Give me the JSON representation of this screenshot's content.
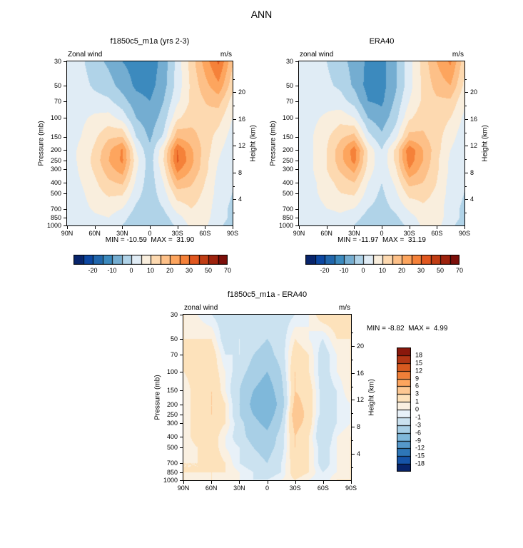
{
  "page_title": "ANN",
  "colors": {
    "background": "#ffffff",
    "frame": "#000000",
    "palette_wind": [
      "#08246b",
      "#0d47a1",
      "#2166ac",
      "#3c8abe",
      "#74add1",
      "#b0d3e8",
      "#e0ecf5",
      "#f9eedd",
      "#fdd9b0",
      "#fdc088",
      "#fda55e",
      "#f58139",
      "#e1571f",
      "#c03d14",
      "#9e230e",
      "#7c0f0a"
    ],
    "palette_diff": [
      "#08246b",
      "#1654a8",
      "#2e77b8",
      "#5598ca",
      "#7fb8da",
      "#a8cfe6",
      "#cbe2f0",
      "#e8f1f8",
      "#faf0e1",
      "#fde2bb",
      "#fdc893",
      "#fda55e",
      "#f07f38",
      "#d85a20",
      "#b23615",
      "#8a180c"
    ]
  },
  "chart_data": [
    {
      "type": "heatmap",
      "title": "f1850c5_m1a (yrs 2-3)",
      "subtitle": "Zonal wind",
      "units": "m/s",
      "stats": "MIN = -10.59  MAX =  31.90",
      "ylabel": "Pressure (mb)",
      "ylabel_right": "Height (km)",
      "x_tick_labels": [
        "90N",
        "60N",
        "30N",
        "0",
        "30S",
        "60S",
        "90S"
      ],
      "x_tick_lats": [
        90,
        60,
        30,
        0,
        -30,
        -60,
        -90
      ],
      "height_ticks_km": [
        20,
        16,
        12,
        8,
        4
      ],
      "height_minor_km": [
        22,
        18,
        14,
        10,
        6,
        2
      ],
      "lat": [
        90,
        75,
        60,
        45,
        30,
        15,
        0,
        -15,
        -30,
        -45,
        -60,
        -75,
        -90
      ],
      "pressure_levels": [
        30,
        50,
        70,
        100,
        150,
        200,
        250,
        300,
        400,
        500,
        700,
        850,
        1000
      ],
      "contour_levels": [
        -25,
        -20,
        -15,
        -10,
        -5,
        0,
        5,
        10,
        15,
        20,
        25,
        30,
        40,
        50,
        60
      ],
      "colorbar_tick_labels": [
        "-20",
        "-10",
        "0",
        "10",
        "20",
        "30",
        "50",
        "70"
      ],
      "palette": "palette_wind",
      "values": [
        [
          3,
          1,
          -3,
          -6,
          -10,
          -12,
          -13,
          -8,
          2,
          12,
          22,
          31,
          16
        ],
        [
          3,
          2,
          -1,
          -3,
          -7,
          -11,
          -12,
          -7,
          2,
          11,
          18,
          24,
          12
        ],
        [
          3,
          3,
          2,
          1,
          -3,
          -8,
          -10,
          -5,
          4,
          11,
          15,
          17,
          8
        ],
        [
          3,
          4,
          6,
          7,
          3,
          -5,
          -8,
          -3,
          9,
          13,
          14,
          12,
          5
        ],
        [
          3,
          5,
          9,
          14,
          15,
          0,
          -6,
          1,
          19,
          17,
          13,
          8,
          3
        ],
        [
          3,
          6,
          11,
          19,
          26,
          5,
          -4,
          9,
          30,
          21,
          13,
          6,
          2
        ],
        [
          3,
          6,
          12,
          20,
          26,
          7,
          -3,
          10,
          31,
          22,
          12,
          5,
          1
        ],
        [
          2,
          6,
          11,
          18,
          23,
          6,
          -3,
          8,
          27,
          20,
          12,
          4,
          1
        ],
        [
          2,
          5,
          9,
          14,
          16,
          4,
          -3,
          5,
          19,
          16,
          10,
          3,
          0
        ],
        [
          1,
          4,
          8,
          11,
          11,
          2,
          -3,
          3,
          13,
          13,
          9,
          3,
          0
        ],
        [
          1,
          3,
          6,
          7,
          5,
          -1,
          -3,
          0,
          7,
          10,
          8,
          2,
          -1
        ],
        [
          0,
          2,
          4,
          5,
          2,
          -3,
          -4,
          -2,
          3,
          8,
          7,
          2,
          -1
        ],
        [
          0,
          1,
          2,
          3,
          0,
          -4,
          -5,
          -3,
          1,
          6,
          6,
          1,
          -2
        ]
      ]
    },
    {
      "type": "heatmap",
      "title": "ERA40",
      "subtitle": "zonal wind",
      "units": "m/s",
      "stats": "MIN = -11.97  MAX =  31.19",
      "ylabel": "Pressure (mb)",
      "ylabel_right": "Height (km)",
      "x_tick_labels": [
        "90N",
        "60N",
        "30N",
        "0",
        "30S",
        "60S",
        "90S"
      ],
      "x_tick_lats": [
        90,
        60,
        30,
        0,
        -30,
        -60,
        -90
      ],
      "height_ticks_km": [
        20,
        16,
        12,
        8,
        4
      ],
      "height_minor_km": [
        22,
        18,
        14,
        10,
        6,
        2
      ],
      "lat": [
        90,
        75,
        60,
        45,
        30,
        15,
        0,
        -15,
        -30,
        -45,
        -60,
        -75,
        -90
      ],
      "pressure_levels": [
        30,
        50,
        70,
        100,
        150,
        200,
        250,
        300,
        400,
        500,
        700,
        850,
        1000
      ],
      "contour_levels": [
        -25,
        -20,
        -15,
        -10,
        -5,
        0,
        5,
        10,
        15,
        20,
        25,
        30,
        40,
        50,
        60
      ],
      "colorbar_tick_labels": [
        "-20",
        "-10",
        "0",
        "10",
        "20",
        "30",
        "50",
        "70"
      ],
      "palette": "palette_wind",
      "values": [
        [
          2,
          1,
          0,
          -3,
          -7,
          -11,
          -12,
          -6,
          3,
          12,
          20,
          26,
          12
        ],
        [
          2,
          2,
          1,
          -1,
          -6,
          -12,
          -12,
          -6,
          3,
          11,
          17,
          20,
          9
        ],
        [
          2,
          3,
          3,
          2,
          -2,
          -10,
          -11,
          -4,
          5,
          11,
          14,
          14,
          6
        ],
        [
          2,
          4,
          6,
          8,
          5,
          -5,
          -8,
          -2,
          9,
          13,
          13,
          10,
          4
        ],
        [
          2,
          5,
          9,
          14,
          17,
          2,
          -4,
          3,
          17,
          16,
          12,
          7,
          2
        ],
        [
          2,
          5,
          10,
          18,
          28,
          9,
          0,
          11,
          29,
          20,
          12,
          5,
          1
        ],
        [
          2,
          5,
          10,
          18,
          27,
          9,
          1,
          11,
          28,
          20,
          11,
          4,
          1
        ],
        [
          2,
          5,
          10,
          16,
          22,
          8,
          1,
          9,
          25,
          18,
          11,
          4,
          0
        ],
        [
          1,
          4,
          8,
          12,
          15,
          5,
          0,
          6,
          17,
          15,
          10,
          3,
          0
        ],
        [
          1,
          4,
          7,
          10,
          11,
          3,
          -1,
          4,
          12,
          12,
          9,
          3,
          0
        ],
        [
          0,
          3,
          5,
          6,
          5,
          0,
          -2,
          1,
          6,
          9,
          8,
          2,
          -1
        ],
        [
          0,
          2,
          3,
          4,
          2,
          -2,
          -3,
          -1,
          3,
          7,
          8,
          2,
          -1
        ],
        [
          0,
          1,
          2,
          2,
          0,
          -4,
          -4,
          -2,
          1,
          6,
          7,
          1,
          -2
        ]
      ]
    },
    {
      "type": "heatmap",
      "title": "f1850c5_m1a - ERA40",
      "subtitle": "zonal wind",
      "units": "m/s",
      "stats": "MIN = -8.82  MAX =  4.99",
      "ylabel": "Pressure (mb)",
      "ylabel_right": "Height (km)",
      "x_tick_labels": [
        "90N",
        "60N",
        "30N",
        "0",
        "30S",
        "60S",
        "90S"
      ],
      "x_tick_lats": [
        90,
        60,
        30,
        0,
        -30,
        -60,
        -90
      ],
      "height_ticks_km": [
        20,
        16,
        12,
        8,
        4
      ],
      "height_minor_km": [
        22,
        18,
        14,
        10,
        6,
        2
      ],
      "lat": [
        90,
        75,
        60,
        45,
        30,
        15,
        0,
        -15,
        -30,
        -45,
        -60,
        -75,
        -90
      ],
      "pressure_levels": [
        30,
        50,
        70,
        100,
        150,
        200,
        250,
        300,
        400,
        500,
        700,
        850,
        1000
      ],
      "contour_levels": [
        -18,
        -15,
        -12,
        -9,
        -6,
        -3,
        -1,
        0,
        1,
        3,
        6,
        9,
        12,
        15,
        18
      ],
      "colorbar_tick_labels": [
        "18",
        "15",
        "12",
        "9",
        "6",
        "3",
        "1",
        "0",
        "-1",
        "-3",
        "-6",
        "-9",
        "-12",
        "-15",
        "-18"
      ],
      "palette": "palette_diff",
      "values": [
        [
          1,
          0,
          -1,
          -2,
          -2,
          -2,
          -2,
          -2,
          -1,
          0,
          2,
          2,
          2
        ],
        [
          1,
          1,
          1,
          -2,
          -1,
          -2,
          -3,
          -2,
          1,
          0,
          -1,
          1,
          1
        ],
        [
          1,
          2,
          2,
          -1,
          -1,
          -3,
          -4,
          -2,
          2,
          1,
          -2,
          0,
          1
        ],
        [
          1,
          2,
          2,
          0,
          -2,
          -4,
          -6,
          -3,
          3,
          1,
          -2,
          0,
          1
        ],
        [
          0,
          2,
          3,
          0,
          -3,
          -6,
          -8,
          -4,
          3,
          2,
          -2,
          -1,
          1
        ],
        [
          0,
          2,
          3,
          1,
          -3,
          -7,
          -8.5,
          -5,
          4,
          2,
          -2,
          -1,
          0
        ],
        [
          0,
          2,
          3,
          1,
          -3,
          -6,
          -8,
          -4,
          5,
          2,
          -2,
          -1,
          0
        ],
        [
          0,
          2,
          2,
          1,
          -2,
          -5,
          -7,
          -3,
          4,
          2,
          -3,
          -1,
          0
        ],
        [
          0,
          2,
          2,
          0,
          -2,
          -4,
          -5,
          -2,
          3,
          1,
          -3,
          0,
          1
        ],
        [
          0,
          1,
          2,
          0,
          -1,
          -3,
          -4,
          -2,
          3,
          1,
          -2,
          0,
          1
        ],
        [
          1,
          1,
          2,
          1,
          -1,
          -2,
          -3,
          -1,
          2,
          1,
          -2,
          0,
          1
        ],
        [
          1,
          1,
          1,
          1,
          0,
          -1,
          -2,
          -1,
          2,
          1,
          -1,
          0,
          1
        ],
        [
          1,
          0,
          1,
          0,
          0,
          -1,
          -1,
          0,
          1,
          0,
          -1,
          1,
          1
        ]
      ]
    }
  ]
}
